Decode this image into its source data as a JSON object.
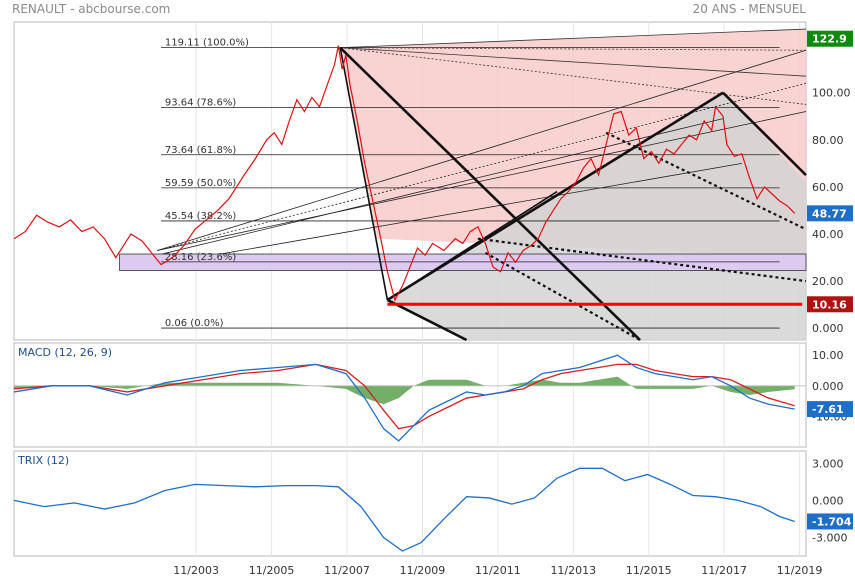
{
  "header": {
    "title": "RENAULT - abcbourse.com",
    "period": "20 ANS - MENSUEL"
  },
  "colors": {
    "price": "#e01010",
    "macd": "#1f6fc9",
    "signal": "#d42020",
    "histogram": "#5aa14f",
    "trix": "#1f6fc9",
    "fan_fill": "#f8caca",
    "channel_fill": "#d3d3d3",
    "band_fill": "#dccaf0",
    "support_line": "#ff0000",
    "grid": "#e6e6e6"
  },
  "x_ticks": [
    "11/2003",
    "11/2005",
    "11/2007",
    "11/2009",
    "11/2011",
    "11/2013",
    "11/2015",
    "11/2017",
    "11/2019"
  ],
  "chart_data": [
    {
      "type": "line",
      "panel": "price",
      "ylim": [
        -5,
        130
      ],
      "y_ticks": [
        "0.000",
        "20.00",
        "40.00",
        "60.00",
        "80.00",
        "100.00"
      ],
      "y_tick_values": [
        0,
        20,
        40,
        60,
        80,
        100
      ],
      "last_value_badges": [
        {
          "label": "122.9",
          "value": 122.9,
          "color": "#0f8a0f"
        },
        {
          "label": "48.77",
          "value": 48.77,
          "color": "#1f6fc9"
        },
        {
          "label": "10.16",
          "value": 10.16,
          "color": "#b01212"
        }
      ],
      "fibonacci_levels": [
        {
          "label": "119.11 (100.0%)",
          "value": 119.11
        },
        {
          "label": "93.64 (78.6%)",
          "value": 93.64
        },
        {
          "label": "73.64 (61.8%)",
          "value": 73.64
        },
        {
          "label": "59.59 (50.0%)",
          "value": 59.59
        },
        {
          "label": "45.54 (38.2%)",
          "value": 45.54
        },
        {
          "label": "28.16 (23.6%)",
          "value": 28.16
        },
        {
          "label": "0.06 (0.0%)",
          "value": 0.06
        }
      ],
      "support_line": {
        "value": 10.16,
        "from": 2008.9,
        "to": 2019.9
      },
      "series": [
        {
          "values": [
            [
              1999.0,
              38
            ],
            [
              1999.3,
              41
            ],
            [
              1999.6,
              48
            ],
            [
              1999.9,
              45
            ],
            [
              2000.2,
              43
            ],
            [
              2000.5,
              46
            ],
            [
              2000.8,
              41
            ],
            [
              2001.1,
              43
            ],
            [
              2001.4,
              38
            ],
            [
              2001.7,
              30
            ],
            [
              2001.9,
              35
            ],
            [
              2002.1,
              40
            ],
            [
              2002.4,
              37
            ],
            [
              2002.7,
              31
            ],
            [
              2002.9,
              27
            ],
            [
              2003.2,
              30
            ],
            [
              2003.5,
              35
            ],
            [
              2003.8,
              42
            ],
            [
              2004.1,
              46
            ],
            [
              2004.4,
              50
            ],
            [
              2004.7,
              55
            ],
            [
              2004.9,
              60
            ],
            [
              2005.1,
              65
            ],
            [
              2005.4,
              72
            ],
            [
              2005.7,
              80
            ],
            [
              2005.9,
              83
            ],
            [
              2006.1,
              78
            ],
            [
              2006.3,
              88
            ],
            [
              2006.5,
              97
            ],
            [
              2006.7,
              92
            ],
            [
              2006.9,
              98
            ],
            [
              2007.1,
              94
            ],
            [
              2007.3,
              103
            ],
            [
              2007.5,
              112
            ],
            [
              2007.6,
              120
            ],
            [
              2007.7,
              110
            ],
            [
              2007.8,
              116
            ],
            [
              2007.9,
              104
            ],
            [
              2008.1,
              88
            ],
            [
              2008.3,
              70
            ],
            [
              2008.5,
              55
            ],
            [
              2008.7,
              40
            ],
            [
              2008.9,
              24
            ],
            [
              2009.1,
              12
            ],
            [
              2009.3,
              18
            ],
            [
              2009.5,
              26
            ],
            [
              2009.7,
              34
            ],
            [
              2009.9,
              31
            ],
            [
              2010.1,
              36
            ],
            [
              2010.4,
              33
            ],
            [
              2010.7,
              38
            ],
            [
              2010.9,
              36
            ],
            [
              2011.1,
              41
            ],
            [
              2011.3,
              43
            ],
            [
              2011.5,
              36
            ],
            [
              2011.7,
              26
            ],
            [
              2011.9,
              24
            ],
            [
              2012.1,
              32
            ],
            [
              2012.3,
              28
            ],
            [
              2012.5,
              33
            ],
            [
              2012.7,
              35
            ],
            [
              2012.9,
              38
            ],
            [
              2013.1,
              45
            ],
            [
              2013.3,
              50
            ],
            [
              2013.5,
              55
            ],
            [
              2013.7,
              58
            ],
            [
              2013.9,
              62
            ],
            [
              2014.1,
              68
            ],
            [
              2014.3,
              72
            ],
            [
              2014.5,
              65
            ],
            [
              2014.7,
              78
            ],
            [
              2014.9,
              91
            ],
            [
              2015.1,
              92
            ],
            [
              2015.3,
              82
            ],
            [
              2015.5,
              85
            ],
            [
              2015.7,
              72
            ],
            [
              2015.9,
              75
            ],
            [
              2016.1,
              70
            ],
            [
              2016.3,
              76
            ],
            [
              2016.5,
              74
            ],
            [
              2016.7,
              78
            ],
            [
              2016.9,
              82
            ],
            [
              2017.1,
              80
            ],
            [
              2017.3,
              88
            ],
            [
              2017.5,
              84
            ],
            [
              2017.6,
              94
            ],
            [
              2017.8,
              90
            ],
            [
              2017.9,
              78
            ],
            [
              2018.1,
              73
            ],
            [
              2018.3,
              74
            ],
            [
              2018.5,
              64
            ],
            [
              2018.7,
              55
            ],
            [
              2018.9,
              60
            ],
            [
              2019.1,
              57
            ],
            [
              2019.3,
              54
            ],
            [
              2019.5,
              52
            ],
            [
              2019.7,
              48.77
            ]
          ]
        }
      ]
    },
    {
      "type": "line",
      "panel": "macd",
      "label": "MACD (12, 26, 9)",
      "ylim": [
        -20,
        14
      ],
      "y_ticks": [
        "10.00",
        "0.000",
        "-10.00"
      ],
      "y_tick_values": [
        10,
        0,
        -10
      ],
      "last_value_badge": {
        "label": "-7.61",
        "value": -7.61,
        "color": "#1f6fc9"
      },
      "series": [
        {
          "name": "MACD",
          "values": [
            [
              1999.0,
              -2
            ],
            [
              2000,
              0
            ],
            [
              2001,
              0
            ],
            [
              2002,
              -3
            ],
            [
              2003,
              1
            ],
            [
              2004,
              3
            ],
            [
              2005,
              5
            ],
            [
              2006,
              6
            ],
            [
              2007,
              7
            ],
            [
              2007.8,
              4
            ],
            [
              2008.3,
              -4
            ],
            [
              2008.8,
              -14
            ],
            [
              2009.2,
              -18
            ],
            [
              2009.6,
              -13
            ],
            [
              2010.0,
              -8
            ],
            [
              2010.5,
              -5
            ],
            [
              2011.0,
              -2
            ],
            [
              2011.5,
              -3
            ],
            [
              2012.0,
              -2
            ],
            [
              2012.5,
              0
            ],
            [
              2013.0,
              4
            ],
            [
              2013.5,
              5
            ],
            [
              2014.0,
              6
            ],
            [
              2014.5,
              8
            ],
            [
              2015.0,
              10
            ],
            [
              2015.5,
              6
            ],
            [
              2016.0,
              4
            ],
            [
              2016.5,
              3
            ],
            [
              2017.0,
              2
            ],
            [
              2017.5,
              3
            ],
            [
              2018.0,
              0
            ],
            [
              2018.5,
              -4
            ],
            [
              2019.0,
              -6
            ],
            [
              2019.7,
              -7.61
            ]
          ]
        },
        {
          "name": "Signal",
          "values": [
            [
              1999.0,
              -1
            ],
            [
              2000,
              0
            ],
            [
              2001,
              0
            ],
            [
              2002,
              -2
            ],
            [
              2003,
              0
            ],
            [
              2004,
              2
            ],
            [
              2005,
              4
            ],
            [
              2006,
              5
            ],
            [
              2007,
              7
            ],
            [
              2007.8,
              5
            ],
            [
              2008.3,
              0
            ],
            [
              2008.8,
              -8
            ],
            [
              2009.2,
              -14
            ],
            [
              2009.6,
              -13
            ],
            [
              2010.0,
              -10
            ],
            [
              2010.5,
              -7
            ],
            [
              2011.0,
              -4
            ],
            [
              2011.5,
              -3
            ],
            [
              2012.0,
              -2
            ],
            [
              2012.5,
              -1
            ],
            [
              2013.0,
              2
            ],
            [
              2013.5,
              4
            ],
            [
              2014.0,
              5
            ],
            [
              2014.5,
              6
            ],
            [
              2015.0,
              7
            ],
            [
              2015.5,
              7
            ],
            [
              2016.0,
              5
            ],
            [
              2016.5,
              4
            ],
            [
              2017.0,
              3
            ],
            [
              2017.5,
              3
            ],
            [
              2018.0,
              2
            ],
            [
              2018.5,
              -1
            ],
            [
              2019.0,
              -4
            ],
            [
              2019.7,
              -6.5
            ]
          ]
        }
      ]
    },
    {
      "type": "line",
      "panel": "trix",
      "label": "TRIX (12)",
      "ylim": [
        -4.5,
        4
      ],
      "y_ticks": [
        "3.000",
        "0.000",
        "-3.000"
      ],
      "y_tick_values": [
        3,
        0,
        -3
      ],
      "last_value_badge": {
        "label": "-1.704",
        "value": -1.704,
        "color": "#1f6fc9"
      },
      "series": [
        {
          "name": "TRIX",
          "values": [
            [
              1999.0,
              0
            ],
            [
              1999.8,
              -0.5
            ],
            [
              2000.6,
              -0.2
            ],
            [
              2001.4,
              -0.7
            ],
            [
              2002.2,
              -0.2
            ],
            [
              2003.0,
              0.8
            ],
            [
              2003.8,
              1.3
            ],
            [
              2004.6,
              1.2
            ],
            [
              2005.4,
              1.1
            ],
            [
              2006.2,
              1.2
            ],
            [
              2007.0,
              1.2
            ],
            [
              2007.6,
              1.1
            ],
            [
              2008.2,
              -0.5
            ],
            [
              2008.8,
              -3.0
            ],
            [
              2009.3,
              -4.1
            ],
            [
              2009.8,
              -3.4
            ],
            [
              2010.4,
              -1.5
            ],
            [
              2011.0,
              0.3
            ],
            [
              2011.6,
              0.2
            ],
            [
              2012.2,
              -0.3
            ],
            [
              2012.8,
              0.2
            ],
            [
              2013.4,
              1.8
            ],
            [
              2014.0,
              2.6
            ],
            [
              2014.6,
              2.6
            ],
            [
              2015.2,
              1.6
            ],
            [
              2015.8,
              2.1
            ],
            [
              2016.4,
              1.3
            ],
            [
              2017.0,
              0.4
            ],
            [
              2017.6,
              0.3
            ],
            [
              2018.2,
              0.0
            ],
            [
              2018.8,
              -0.5
            ],
            [
              2019.3,
              -1.3
            ],
            [
              2019.7,
              -1.704
            ]
          ]
        }
      ]
    }
  ]
}
